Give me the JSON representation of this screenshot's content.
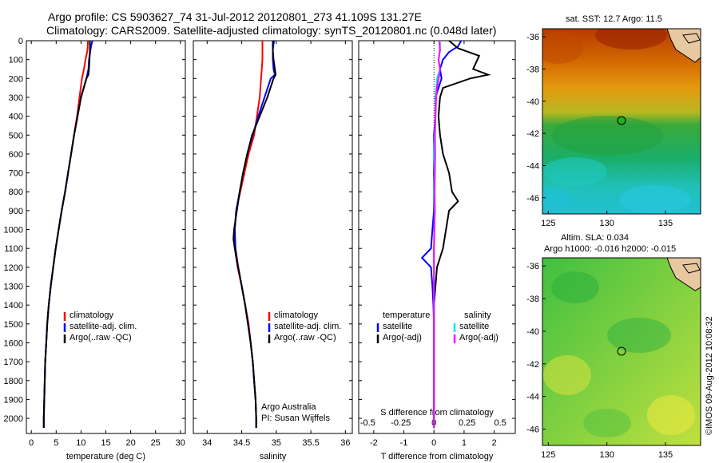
{
  "title": {
    "line1": "Argo profile: CS 5903627_74 31-Jul-2012 20120801_273 41.109S 131.27E",
    "line2": "Climatology: CARS2009. Satellite-adjusted climatology: synTS_20120801.nc (0.048d later)"
  },
  "depth_ticks": [
    0,
    100,
    200,
    300,
    400,
    500,
    600,
    700,
    800,
    900,
    1000,
    1100,
    1200,
    1300,
    1400,
    1500,
    1600,
    1700,
    1800,
    1900,
    2000
  ],
  "colors": {
    "climatology": "#ff0000",
    "satellite": "#0000ff",
    "argo": "#000000",
    "sat_salinity": "#00e5ff",
    "argo_salinity": "#ff00ff"
  },
  "chart_data": [
    {
      "type": "line",
      "panel": "temperature",
      "xlabel": "temperature (deg C)",
      "xlim": [
        -1,
        31
      ],
      "xticks": [
        0,
        5,
        10,
        15,
        20,
        25,
        30
      ],
      "ylim": [
        2080,
        0
      ],
      "legend": [
        "climatology",
        "satellite-adj. clim.",
        "Argo(..raw -QC)"
      ],
      "series": [
        {
          "name": "climatology",
          "depth": [
            0,
            50,
            100,
            150,
            200,
            300,
            400,
            500,
            600,
            700,
            800,
            900,
            1000,
            1100,
            1200,
            1300,
            1400,
            1500,
            1600,
            1700,
            1800,
            1900,
            2000,
            2050
          ],
          "values": [
            11.4,
            11.3,
            10.9,
            10.6,
            10.2,
            9.7,
            9.2,
            8.6,
            8.0,
            7.4,
            6.8,
            6.1,
            5.5,
            4.9,
            4.4,
            3.9,
            3.5,
            3.2,
            3.0,
            2.8,
            2.7,
            2.6,
            2.5,
            2.5
          ]
        },
        {
          "name": "satellite-adj. clim.",
          "depth": [
            0,
            20,
            50,
            100,
            150,
            200,
            300,
            400,
            500,
            600,
            700,
            800,
            900,
            1000,
            1100,
            1200,
            1300,
            1400,
            1500,
            1600,
            1700,
            1800,
            1900,
            2000,
            2050
          ],
          "values": [
            12.3,
            12.1,
            11.9,
            11.6,
            11.5,
            11.1,
            10.0,
            9.3,
            8.6,
            8.0,
            7.4,
            6.8,
            6.1,
            5.5,
            4.9,
            4.4,
            3.9,
            3.5,
            3.2,
            3.0,
            2.8,
            2.7,
            2.6,
            2.5,
            2.5
          ]
        },
        {
          "name": "Argo(..raw -QC)",
          "depth": [
            0,
            50,
            100,
            150,
            180,
            200,
            300,
            400,
            500,
            600,
            700,
            800,
            900,
            1000,
            1100,
            1200,
            1300,
            1400,
            1500,
            1600,
            1700,
            1800,
            1900,
            2000,
            2050
          ],
          "values": [
            11.8,
            11.8,
            11.7,
            11.6,
            11.5,
            11.1,
            10.0,
            9.3,
            8.6,
            8.0,
            7.4,
            6.8,
            6.1,
            5.5,
            4.9,
            4.4,
            3.9,
            3.5,
            3.2,
            3.0,
            2.8,
            2.7,
            2.6,
            2.5,
            2.5
          ]
        }
      ]
    },
    {
      "type": "line",
      "panel": "salinity",
      "xlabel": "salinity",
      "xlim": [
        33.8,
        36.1
      ],
      "xticks": [
        34,
        34.5,
        35,
        35.5,
        36
      ],
      "ylim": [
        2080,
        0
      ],
      "legend": [
        "climatology",
        "satellite-adj. clim.",
        "Argo(..raw -QC)"
      ],
      "annotation": [
        "Argo Australia",
        "PI: Susan Wijffels"
      ],
      "series": [
        {
          "name": "climatology",
          "depth": [
            0,
            50,
            100,
            150,
            200,
            300,
            400,
            500,
            600,
            700,
            800,
            900,
            1000,
            1100,
            1200,
            1300,
            1400,
            1500,
            1600,
            1700,
            1800,
            1900,
            2000,
            2050
          ],
          "values": [
            34.8,
            34.8,
            34.8,
            34.79,
            34.78,
            34.76,
            34.72,
            34.68,
            34.6,
            34.54,
            34.48,
            34.42,
            34.4,
            34.4,
            34.44,
            34.5,
            34.55,
            34.6,
            34.63,
            34.66,
            34.68,
            34.7,
            34.71,
            34.71
          ]
        },
        {
          "name": "satellite-adj. clim.",
          "depth": [
            0,
            20,
            50,
            100,
            150,
            180,
            200,
            300,
            400,
            500,
            600,
            700,
            800,
            900,
            1000,
            1100,
            1200,
            1300,
            1400,
            1500,
            1600,
            1700,
            1800,
            1900,
            2000,
            2050
          ],
          "values": [
            34.97,
            34.96,
            34.95,
            34.95,
            34.96,
            34.98,
            34.92,
            34.83,
            34.74,
            34.66,
            34.58,
            34.52,
            34.47,
            34.42,
            34.4,
            34.41,
            34.45,
            34.5,
            34.55,
            34.59,
            34.63,
            34.66,
            34.68,
            34.7,
            34.71,
            34.71
          ]
        },
        {
          "name": "Argo(..raw -QC)",
          "depth": [
            0,
            50,
            100,
            150,
            180,
            200,
            300,
            400,
            500,
            600,
            700,
            800,
            900,
            1000,
            1050,
            1100,
            1200,
            1300,
            1400,
            1500,
            1600,
            1700,
            1800,
            1900,
            2000,
            2050
          ],
          "values": [
            34.95,
            34.95,
            34.96,
            34.98,
            34.99,
            34.96,
            34.87,
            34.76,
            34.65,
            34.58,
            34.52,
            34.47,
            34.43,
            34.39,
            34.38,
            34.4,
            34.45,
            34.5,
            34.55,
            34.59,
            34.63,
            34.66,
            34.68,
            34.7,
            34.71,
            34.71
          ]
        }
      ]
    },
    {
      "type": "line",
      "panel": "difference",
      "xlabel": "T difference from climatology",
      "xlabel_top": "S difference from climatology",
      "xlim": [
        -2.5,
        2.7
      ],
      "xticks": [
        -2,
        -1,
        0,
        1,
        2
      ],
      "xticks_s": [
        "-0.5",
        "-0.25",
        "0",
        "0.25",
        "0.5"
      ],
      "ylim": [
        2080,
        0
      ],
      "legend_left": [
        "temperature",
        "satellite",
        "Argo(-adj)"
      ],
      "legend_right": [
        "salinity",
        "satellite",
        "Argo(-adj)"
      ],
      "series": [
        {
          "name": "temperature satellite",
          "depth": [
            0,
            30,
            60,
            100,
            150,
            200,
            250,
            300,
            400,
            500,
            600,
            700,
            800,
            900,
            1000,
            1100,
            1150,
            1200,
            1300,
            1400,
            1500,
            1600,
            1800,
            2000,
            2050
          ],
          "values": [
            0.9,
            0.8,
            0.5,
            0.3,
            0.2,
            0.25,
            0.15,
            0.05,
            0.05,
            0.0,
            0.0,
            0.0,
            0.0,
            0.0,
            -0.05,
            -0.1,
            -0.4,
            -0.1,
            -0.05,
            -0.02,
            0.0,
            0.0,
            0.0,
            0.0,
            0.0
          ]
        },
        {
          "name": "temperature Argo(-adj)",
          "depth": [
            0,
            40,
            80,
            150,
            180,
            200,
            250,
            300,
            400,
            500,
            600,
            700,
            800,
            850,
            900,
            1000,
            1100,
            1200,
            1300,
            1400,
            1600,
            1800,
            2000,
            2050
          ],
          "values": [
            0.5,
            0.8,
            1.5,
            1.3,
            1.8,
            1.2,
            0.3,
            0.2,
            0.15,
            0.2,
            0.3,
            0.5,
            0.6,
            0.8,
            0.5,
            0.4,
            0.3,
            0.1,
            0.05,
            0.0,
            0.0,
            0.0,
            0.0,
            0.0
          ]
        },
        {
          "name": "salinity satellite",
          "depth": [
            0,
            50,
            100,
            150,
            200,
            300,
            400,
            500,
            600,
            700,
            800,
            900,
            1000,
            1100,
            1200,
            1400,
            1600,
            1800,
            2000,
            2050
          ],
          "values": [
            0.2,
            0.2,
            0.15,
            0.2,
            0.1,
            0.05,
            0.05,
            0.02,
            0.0,
            0.02,
            0.0,
            0.02,
            0.01,
            0.0,
            0.0,
            0.0,
            0.0,
            0.0,
            0.0,
            0.0
          ]
        },
        {
          "name": "salinity Argo(-adj)",
          "depth": [
            0,
            50,
            100,
            150,
            180,
            200,
            250,
            300,
            400,
            500,
            600,
            700,
            800,
            900,
            1000,
            1100,
            1200,
            1400,
            1600,
            1800,
            2000,
            2050
          ],
          "values": [
            0.18,
            0.2,
            0.15,
            0.2,
            0.18,
            0.15,
            0.1,
            0.07,
            0.05,
            0.03,
            0.04,
            0.03,
            0.02,
            0.03,
            0.01,
            0.0,
            0.0,
            0.0,
            0.0,
            0.0,
            0.0,
            0.0
          ]
        }
      ]
    },
    {
      "type": "heatmap",
      "panel": "sst_map",
      "title": "sat. SST: 12.7 Argo: 11.5",
      "xticks": [
        125,
        130,
        135
      ],
      "yticks": [
        -36,
        -38,
        -40,
        -42,
        -44,
        -46
      ],
      "xlim": [
        124.5,
        138
      ],
      "ylim": [
        -47,
        -35.5
      ],
      "marker": {
        "lon": 131.27,
        "lat": -41.109
      }
    },
    {
      "type": "heatmap",
      "panel": "sla_map",
      "title": "Altim. SLA: 0.034",
      "subtitle": "Argo h1000: -0.016 h2000: -0.015",
      "xticks": [
        125,
        130,
        135
      ],
      "yticks": [
        -36,
        -38,
        -40,
        -42,
        -44,
        -46
      ],
      "xlim": [
        124.5,
        138
      ],
      "ylim": [
        -47,
        -35.5
      ],
      "marker": {
        "lon": 131.27,
        "lat": -41.109
      }
    }
  ],
  "imprint": "©IMOS 09-Aug-2012 10:08:32"
}
